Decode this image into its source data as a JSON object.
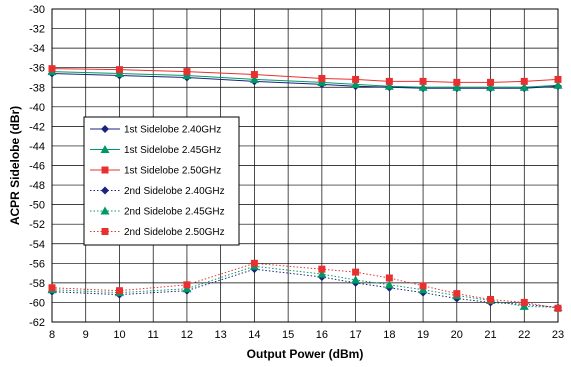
{
  "chart_data": {
    "type": "line",
    "xlabel": "Output Power (dBm)",
    "ylabel": "ACPR Sidelobe (dBr)",
    "xlim": [
      8,
      23
    ],
    "ylim": [
      -62,
      -30
    ],
    "x_ticks": [
      8,
      9,
      10,
      11,
      12,
      13,
      14,
      15,
      16,
      17,
      18,
      19,
      20,
      21,
      22,
      23
    ],
    "y_ticks": [
      -62,
      -60,
      -58,
      -56,
      -54,
      -52,
      -50,
      -48,
      -46,
      -44,
      -42,
      -40,
      -38,
      -36,
      -34,
      -32,
      -30
    ],
    "grid": true,
    "legend_position": "left-middle",
    "x": [
      8,
      10,
      12,
      14,
      16,
      17,
      18,
      19,
      20,
      21,
      22,
      23
    ],
    "series": [
      {
        "name": "1st Sidelobe 2.40GHz",
        "color": "#1a237e",
        "marker": "diamond",
        "dash": "solid",
        "values": [
          -36.6,
          -36.8,
          -37.0,
          -37.4,
          -37.7,
          -37.9,
          -38.0,
          -38.1,
          -38.1,
          -38.1,
          -38.1,
          -37.9
        ]
      },
      {
        "name": "1st Sidelobe 2.45GHz",
        "color": "#009966",
        "marker": "triangle",
        "dash": "solid",
        "values": [
          -36.4,
          -36.6,
          -36.8,
          -37.2,
          -37.5,
          -37.7,
          -37.9,
          -38.0,
          -38.0,
          -38.0,
          -38.0,
          -37.8
        ]
      },
      {
        "name": "1st Sidelobe 2.50GHz",
        "color": "#e83030",
        "marker": "square",
        "dash": "solid",
        "values": [
          -36.1,
          -36.2,
          -36.4,
          -36.7,
          -37.1,
          -37.2,
          -37.4,
          -37.4,
          -37.5,
          -37.5,
          -37.4,
          -37.2
        ]
      },
      {
        "name": "2nd Sidelobe 2.40GHz",
        "color": "#1a237e",
        "marker": "diamond",
        "dash": "dotted",
        "values": [
          -58.9,
          -59.2,
          -58.8,
          -56.6,
          -57.4,
          -58.0,
          -58.5,
          -59.0,
          -59.6,
          -60.0,
          -60.2,
          -60.5
        ]
      },
      {
        "name": "2nd Sidelobe 2.45GHz",
        "color": "#009966",
        "marker": "triangle",
        "dash": "dotted",
        "values": [
          -58.7,
          -59.0,
          -58.6,
          -56.3,
          -57.1,
          -57.7,
          -58.2,
          -58.7,
          -59.3,
          -59.8,
          -60.4,
          -60.5
        ]
      },
      {
        "name": "2nd Sidelobe 2.50GHz",
        "color": "#e83030",
        "marker": "square",
        "dash": "dotted",
        "values": [
          -58.5,
          -58.8,
          -58.2,
          -56.0,
          -56.6,
          -56.9,
          -57.5,
          -58.3,
          -59.1,
          -59.7,
          -60.0,
          -60.6
        ]
      }
    ]
  }
}
